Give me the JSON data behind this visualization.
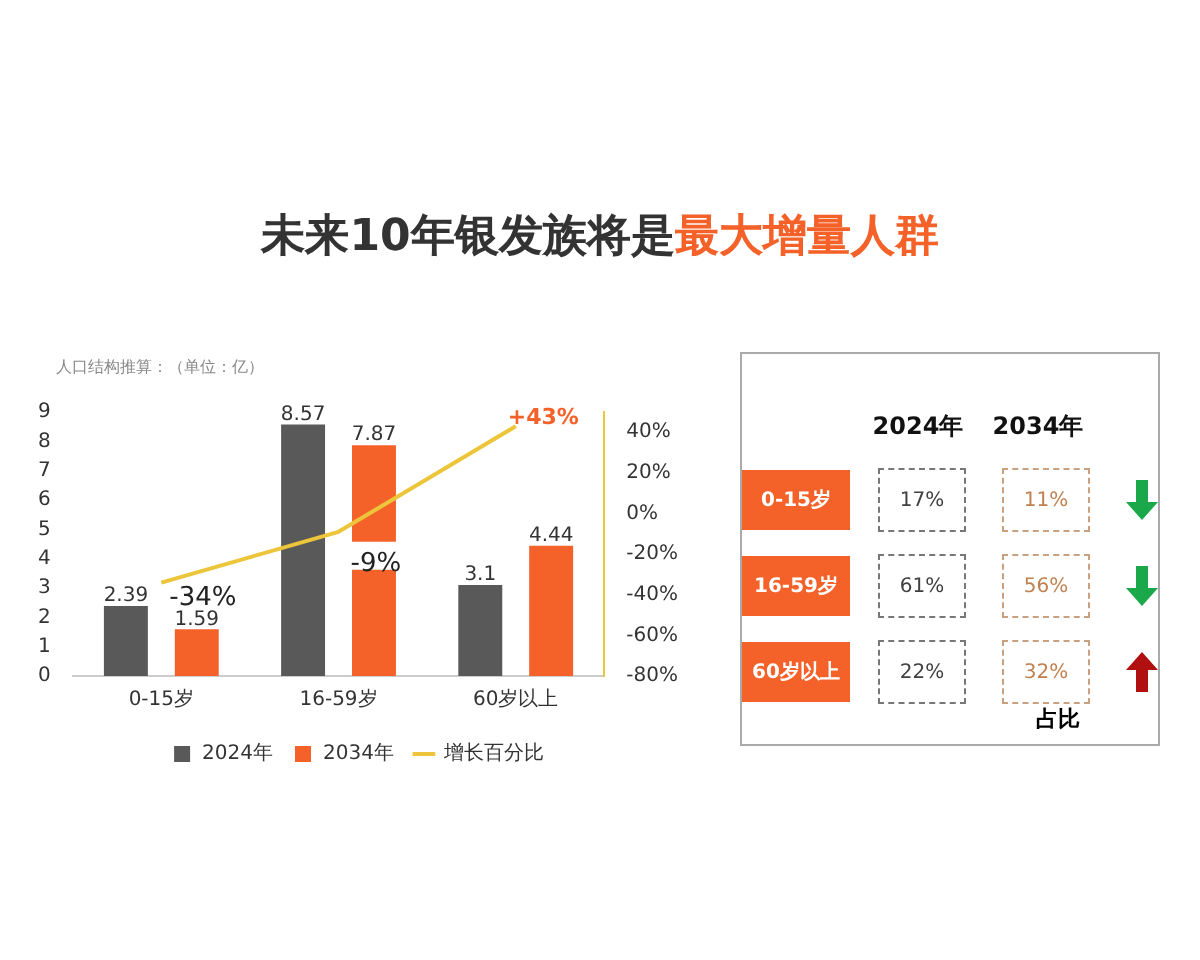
{
  "chart_data": [
    {
      "type": "bar",
      "title": "未来10年银发族将是最大增量人群",
      "ylabel": "人口结构推算：（单位：亿）",
      "categories": [
        "0-15岁",
        "16-59岁",
        "60岁以上"
      ],
      "series": [
        {
          "name": "2024年",
          "color": "#595959",
          "values": [
            2.39,
            8.57,
            3.1
          ]
        },
        {
          "name": "2034年",
          "color": "#f4622a",
          "values": [
            1.59,
            7.87,
            4.44
          ]
        },
        {
          "name": "增长百分比",
          "type": "line",
          "axis": "y2",
          "color": "#ecc53a",
          "values": [
            -34,
            -9,
            43
          ],
          "value_labels": [
            "-34%",
            "-9%",
            "+43%"
          ],
          "marker": "none"
        }
      ],
      "data_labels": true,
      "ylim": [
        0,
        9
      ],
      "yticks": [
        0,
        1,
        2,
        3,
        4,
        5,
        6,
        7,
        8,
        9
      ],
      "y2lim": [
        -80,
        50
      ],
      "y2ticks": [
        {
          "value": -80,
          "label": "-80%"
        },
        {
          "value": -60,
          "label": "-60%"
        },
        {
          "value": -40,
          "label": "-40%"
        },
        {
          "value": -20,
          "label": "-20%"
        },
        {
          "value": 0,
          "label": "0%"
        },
        {
          "value": 20,
          "label": "20%"
        },
        {
          "value": 40,
          "label": "40%"
        }
      ],
      "grid": false,
      "legend": "bottom"
    },
    {
      "type": "other",
      "xlabel": "占比",
      "categories": [
        "0-15岁",
        "16-59岁",
        "60岁以上"
      ],
      "series": [
        {
          "name": "2024年",
          "values": [
            17,
            61,
            22
          ],
          "value_labels": [
            "17%",
            "61%",
            "22%"
          ]
        },
        {
          "name": "2034年",
          "values": [
            11,
            56,
            32
          ],
          "value_labels": [
            "11%",
            "56%",
            "32%"
          ]
        }
      ]
    }
  ]
}
